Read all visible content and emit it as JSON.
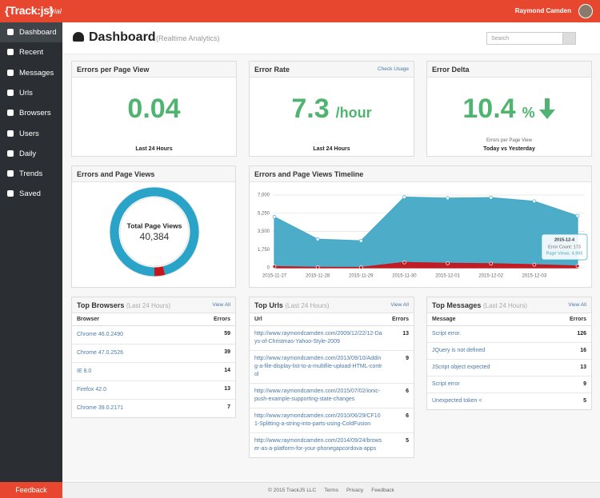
{
  "app": {
    "logo": "{Track:js}",
    "plan": "Trial",
    "user": "Raymond Camden"
  },
  "sidebar": {
    "items": [
      "Dashboard",
      "Recent",
      "Messages",
      "Urls",
      "Browsers",
      "Users",
      "Daily",
      "Trends",
      "Saved"
    ],
    "feedback": "Feedback"
  },
  "header": {
    "title": "Dashboard",
    "subtitle": "(Realtime Analytics)",
    "search_placeholder": "Search"
  },
  "metrics": [
    {
      "title": "Errors per Page View",
      "value": 0.04,
      "caption": "Last 24 Hours"
    },
    {
      "title": "Error Rate",
      "link": "Check Usage",
      "value": 7.3,
      "unit": "/hour",
      "caption": "Last 24 Hours"
    },
    {
      "title": "Error Delta",
      "value": 10.4,
      "unit": "%",
      "note": "Errors per Page View",
      "caption": "Today vs Yesterday"
    }
  ],
  "chart_data": [
    {
      "type": "pie",
      "title": "Errors and Page Views",
      "center_label": "Total Page Views",
      "values": [
        40384,
        1615
      ],
      "value_labels": [
        "40,384",
        null
      ],
      "colors": [
        "#2aa3c8",
        "#c5161d"
      ]
    },
    {
      "type": "area",
      "title": "Errors and Page Views Timeline",
      "categories": [
        "2015-11-27",
        "2015-11-28",
        "2015-11-29",
        "2015-11-30",
        "2015-12-01",
        "2015-12-02",
        "2015-12-03",
        null
      ],
      "series": [
        {
          "color": "#43a9c6",
          "values": [
            4900,
            2750,
            2600,
            6800,
            6700,
            6750,
            6400,
            4995
          ]
        },
        {
          "color": "#c5161d",
          "values": [
            120,
            50,
            40,
            520,
            430,
            400,
            300,
            173
          ]
        }
      ],
      "ylim": [
        0,
        7000
      ],
      "yticks": [
        0,
        {
          "value": 1750,
          "label": "1,750"
        },
        {
          "value": 3500,
          "label": "3,500"
        },
        {
          "value": 5250,
          "label": "5,250"
        },
        {
          "value": 7000,
          "label": "7,000"
        }
      ],
      "grid": true,
      "tooltip": {
        "title": "2015-12-4",
        "lines": [
          "Error Count: 173",
          "Page Views: 4,995"
        ]
      }
    }
  ],
  "tables": [
    {
      "title": "Top Browsers",
      "period": "(Last 24 Hours)",
      "link": "View All",
      "columns": [
        "Browser",
        "Errors"
      ],
      "rows": [
        [
          "Chrome 46.0.2490",
          59
        ],
        [
          "Chrome 47.0.2526",
          39
        ],
        [
          "IE 8.0",
          14
        ],
        [
          "Firefox 42.0",
          13
        ],
        [
          "Chrome 39.0.2171",
          7
        ]
      ]
    },
    {
      "title": "Top Urls",
      "period": "(Last 24 Hours)",
      "link": "View All",
      "columns": [
        "Url",
        "Errors"
      ],
      "rows": [
        [
          "http://www.raymondcamden.com/2009/12/22/12-Days-of-Christmas-Yahoo-Style-2009",
          13
        ],
        [
          "http://www.raymondcamden.com/2013/09/10/Adding-a-file-display-list-to-a-multifile-upload-HTML-control",
          9
        ],
        [
          "http://www.raymondcamden.com/2015/07/02/ionic-push-example-supporting-state-changes",
          6
        ],
        [
          "http://www.raymondcamden.com/2010/06/29/CF101-Splitting-a-string-into-parts-using-ColdFusion",
          6
        ],
        [
          "http://www.raymondcamden.com/2014/09/24/browser-as-a-platform-for-your-phonegapcordova-apps",
          5
        ]
      ]
    },
    {
      "title": "Top Messages",
      "period": "(Last 24 Hours)",
      "link": "View All",
      "columns": [
        "Message",
        "Errors"
      ],
      "rows": [
        [
          "Script error.",
          126
        ],
        [
          "JQuery is not defined",
          16
        ],
        [
          "JScript object expected",
          13
        ],
        [
          "Script error",
          9
        ],
        [
          "Unexpected token <",
          5
        ]
      ]
    }
  ],
  "footer": [
    "© 2015 TrackJS LLC",
    "Terms",
    "Privacy",
    "Feedback"
  ]
}
